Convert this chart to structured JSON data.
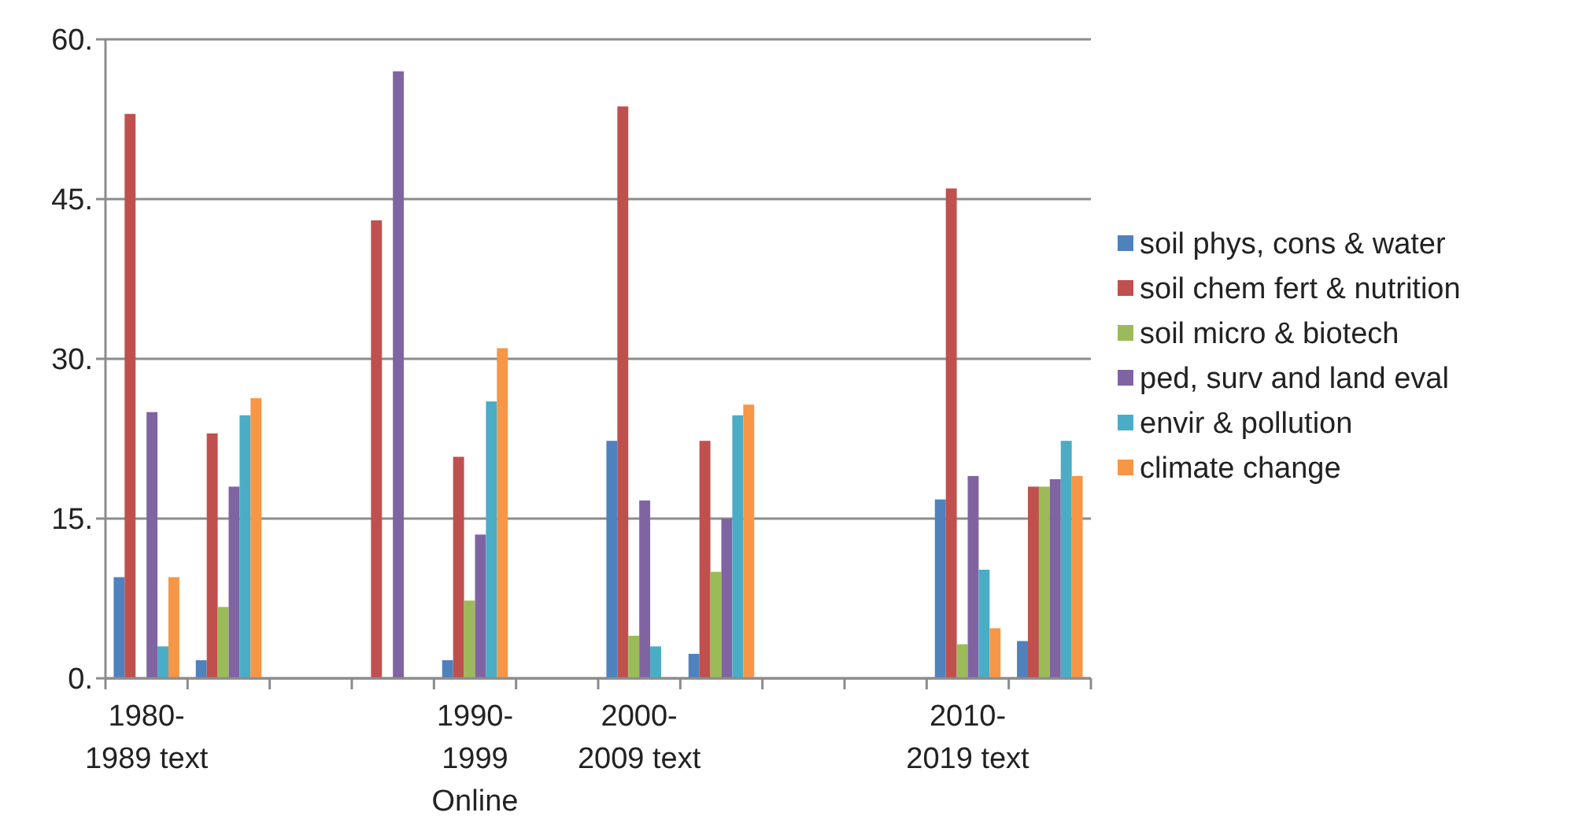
{
  "chart_data": {
    "type": "bar",
    "categories": [
      "1980-1989 text",
      null,
      null,
      null,
      "1990-1999 Online",
      null,
      "2000-2009 text",
      null,
      null,
      null,
      "2010-2019 text",
      null
    ],
    "series": [
      {
        "name": "soil phys, cons & water",
        "color": "#4f81bd",
        "values": [
          9.5,
          1.7,
          null,
          0,
          1.7,
          null,
          22.3,
          2.3,
          null,
          null,
          16.8,
          3.5
        ]
      },
      {
        "name": "soil chem fert & nutrition",
        "color": "#c0504d",
        "values": [
          53,
          23,
          null,
          43,
          20.8,
          null,
          53.7,
          22.3,
          null,
          null,
          46,
          18
        ]
      },
      {
        "name": "soil micro & biotech",
        "color": "#9bbb59",
        "values": [
          0,
          6.7,
          null,
          0,
          7.3,
          null,
          4,
          10,
          null,
          null,
          3.2,
          18
        ]
      },
      {
        "name": "ped, surv and land eval",
        "color": "#8064a2",
        "values": [
          25,
          18,
          null,
          57,
          13.5,
          null,
          16.7,
          15,
          null,
          null,
          19,
          18.7
        ]
      },
      {
        "name": "envir & pollution",
        "color": "#4bacc6",
        "values": [
          3,
          24.7,
          null,
          0,
          26,
          null,
          3,
          24.7,
          null,
          null,
          10.2,
          22.3
        ]
      },
      {
        "name": "climate change",
        "color": "#f79646",
        "values": [
          9.5,
          26.3,
          null,
          0,
          31,
          null,
          0,
          25.7,
          null,
          null,
          4.7,
          19
        ]
      }
    ],
    "ylim": [
      0,
      60
    ],
    "yticks": [
      {
        "value": 0,
        "label": "0."
      },
      {
        "value": 15,
        "label": "15."
      },
      {
        "value": 30,
        "label": "30."
      },
      {
        "value": 45,
        "label": "45."
      },
      {
        "value": 60,
        "label": "60."
      }
    ],
    "grid": "y",
    "legend": "right"
  }
}
